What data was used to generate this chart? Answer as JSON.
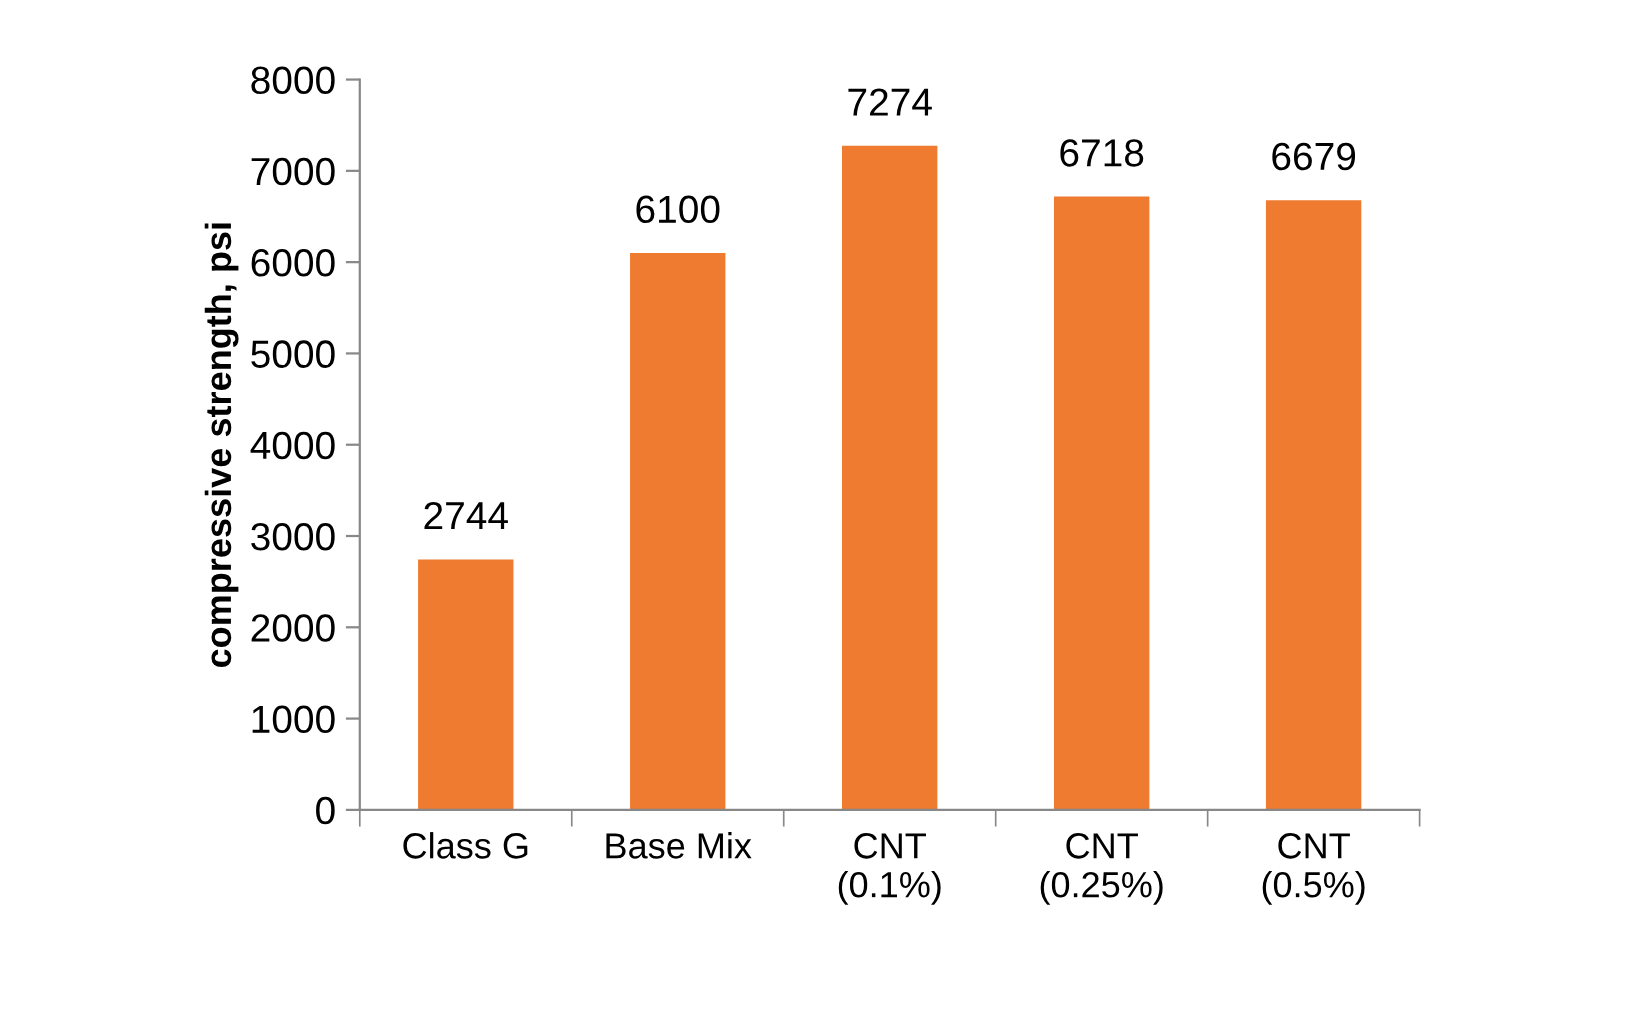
{
  "chart_data": {
    "type": "bar",
    "ylabel": "compressive strength, psi",
    "categories": [
      "Class G",
      "Base Mix",
      "CNT\n(0.1%)",
      "CNT\n(0.25%)",
      "CNT\n(0.5%)"
    ],
    "values": [
      2744,
      6100,
      7274,
      6718,
      6679
    ],
    "color": "#ee7b2f",
    "ylim": [
      0,
      8000
    ],
    "yticks": [
      0,
      1000,
      2000,
      3000,
      4000,
      5000,
      6000,
      7000,
      8000
    ],
    "grid": false,
    "data_labels": true
  }
}
